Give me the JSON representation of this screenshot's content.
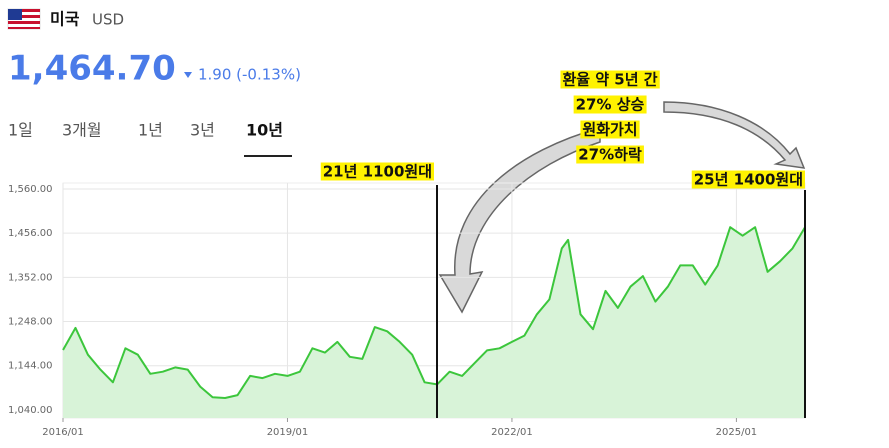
{
  "header": {
    "country": "미국",
    "currency": "USD",
    "price": "1,464.70",
    "change": "1.90 (-0.13%)"
  },
  "tabs": [
    "1일",
    "3개월",
    "1년",
    "3년",
    "10년"
  ],
  "active_tab": 4,
  "chart_data": {
    "type": "line",
    "x": [
      "2016/01",
      "2016/03",
      "2016/05",
      "2016/07",
      "2016/09",
      "2016/11",
      "2017/01",
      "2017/03",
      "2017/05",
      "2017/07",
      "2017/09",
      "2017/11",
      "2018/01",
      "2018/03",
      "2018/05",
      "2018/07",
      "2018/09",
      "2018/11",
      "2019/01",
      "2019/03",
      "2019/05",
      "2019/07",
      "2019/09",
      "2019/11",
      "2020/01",
      "2020/03",
      "2020/05",
      "2020/07",
      "2020/09",
      "2020/11",
      "2021/01",
      "2021/03",
      "2021/05",
      "2021/07",
      "2021/09",
      "2021/11",
      "2022/01",
      "2022/03",
      "2022/05",
      "2022/07",
      "2022/09",
      "2022/10",
      "2022/12",
      "2023/02",
      "2023/04",
      "2023/06",
      "2023/08",
      "2023/10",
      "2023/12",
      "2024/02",
      "2024/04",
      "2024/06",
      "2024/08",
      "2024/10",
      "2024/12",
      "2025/02",
      "2025/04",
      "2025/06",
      "2025/08",
      "2025/10",
      "2025/12"
    ],
    "values": [
      1181,
      1233,
      1170,
      1135,
      1105,
      1185,
      1170,
      1125,
      1130,
      1140,
      1135,
      1095,
      1070,
      1068,
      1075,
      1120,
      1115,
      1125,
      1120,
      1130,
      1185,
      1175,
      1200,
      1165,
      1160,
      1235,
      1225,
      1200,
      1170,
      1105,
      1100,
      1130,
      1120,
      1150,
      1180,
      1185,
      1200,
      1215,
      1265,
      1300,
      1420,
      1440,
      1265,
      1230,
      1320,
      1280,
      1330,
      1355,
      1295,
      1330,
      1380,
      1380,
      1335,
      1380,
      1470,
      1450,
      1470,
      1365,
      1390,
      1420,
      1470
    ],
    "color": "#3cc63c",
    "xlim": [
      "2016/01",
      "2025/12"
    ],
    "xticks": [
      "2016/01",
      "2019/01",
      "2022/01",
      "2025/01"
    ],
    "ylim": [
      1021,
      1574
    ],
    "yticks": [
      {
        "value": 1040,
        "label": "1,040.00"
      },
      {
        "value": 1144,
        "label": "1,144.00"
      },
      {
        "value": 1248,
        "label": "1,248.00"
      },
      {
        "value": 1352,
        "label": "1,352.00"
      },
      {
        "value": 1456,
        "label": "1,456.00"
      },
      {
        "value": 1560,
        "label": "1,560.00"
      }
    ],
    "grid": true,
    "annotations": [
      "21년 1100원대",
      "환율 약 5년 간",
      "27% 상승",
      "원화가치",
      "27%하락",
      "25년 1400원대"
    ]
  }
}
